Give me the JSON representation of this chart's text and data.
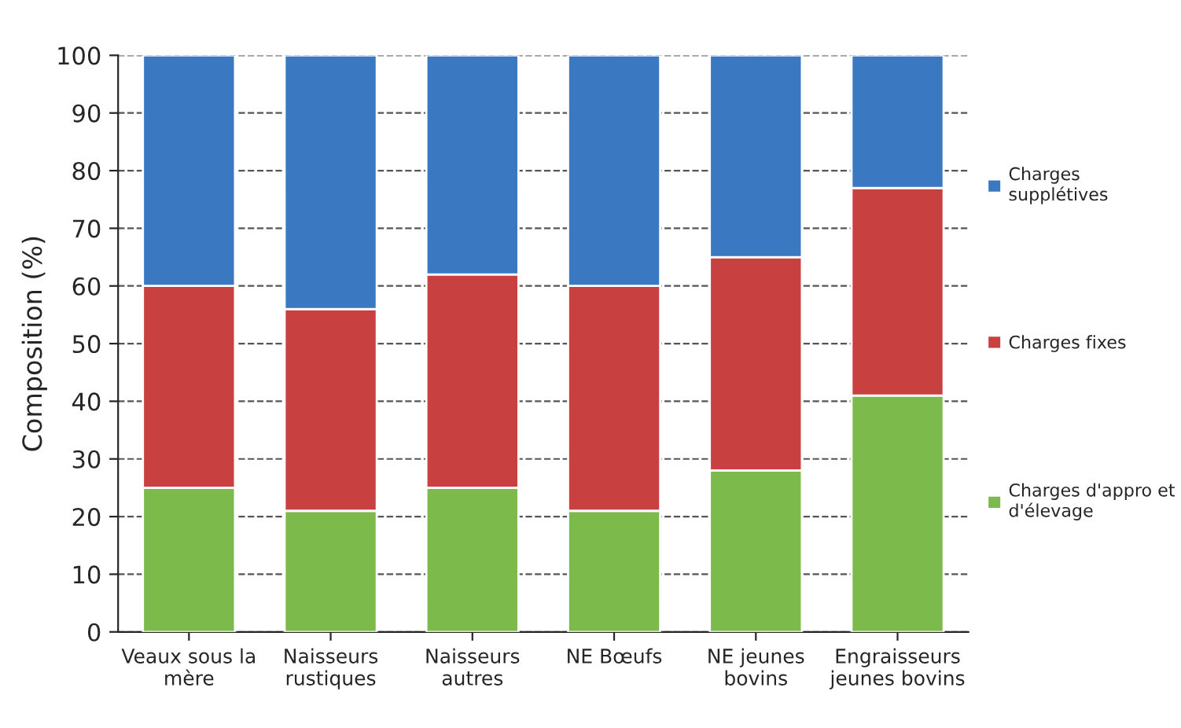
{
  "chart_data": {
    "type": "bar",
    "stacked": true,
    "ylabel": "Composition (%)",
    "categories": [
      "Veaux sous la\nmère",
      "Naisseurs\nrustiques",
      "Naisseurs\nautres",
      "NE Bœufs",
      "NE jeunes\nbovins",
      "Engraisseurs\njeunes bovins"
    ],
    "series": [
      {
        "name": "Charges d'appro et\nd'élevage",
        "color": "#7dba4c",
        "values": [
          25,
          21,
          25,
          21,
          28,
          41
        ]
      },
      {
        "name": "Charges fixes",
        "color": "#c8403f",
        "values": [
          35,
          35,
          37,
          39,
          37,
          36
        ]
      },
      {
        "name": "Charges\nsupplétives",
        "color": "#3a78c2",
        "values": [
          40,
          44,
          38,
          40,
          35,
          23
        ]
      }
    ],
    "ylim": [
      0,
      100
    ],
    "yticks": [
      0,
      10,
      20,
      30,
      40,
      50,
      60,
      70,
      80,
      90,
      100
    ],
    "grid": "y",
    "legend": "right"
  }
}
